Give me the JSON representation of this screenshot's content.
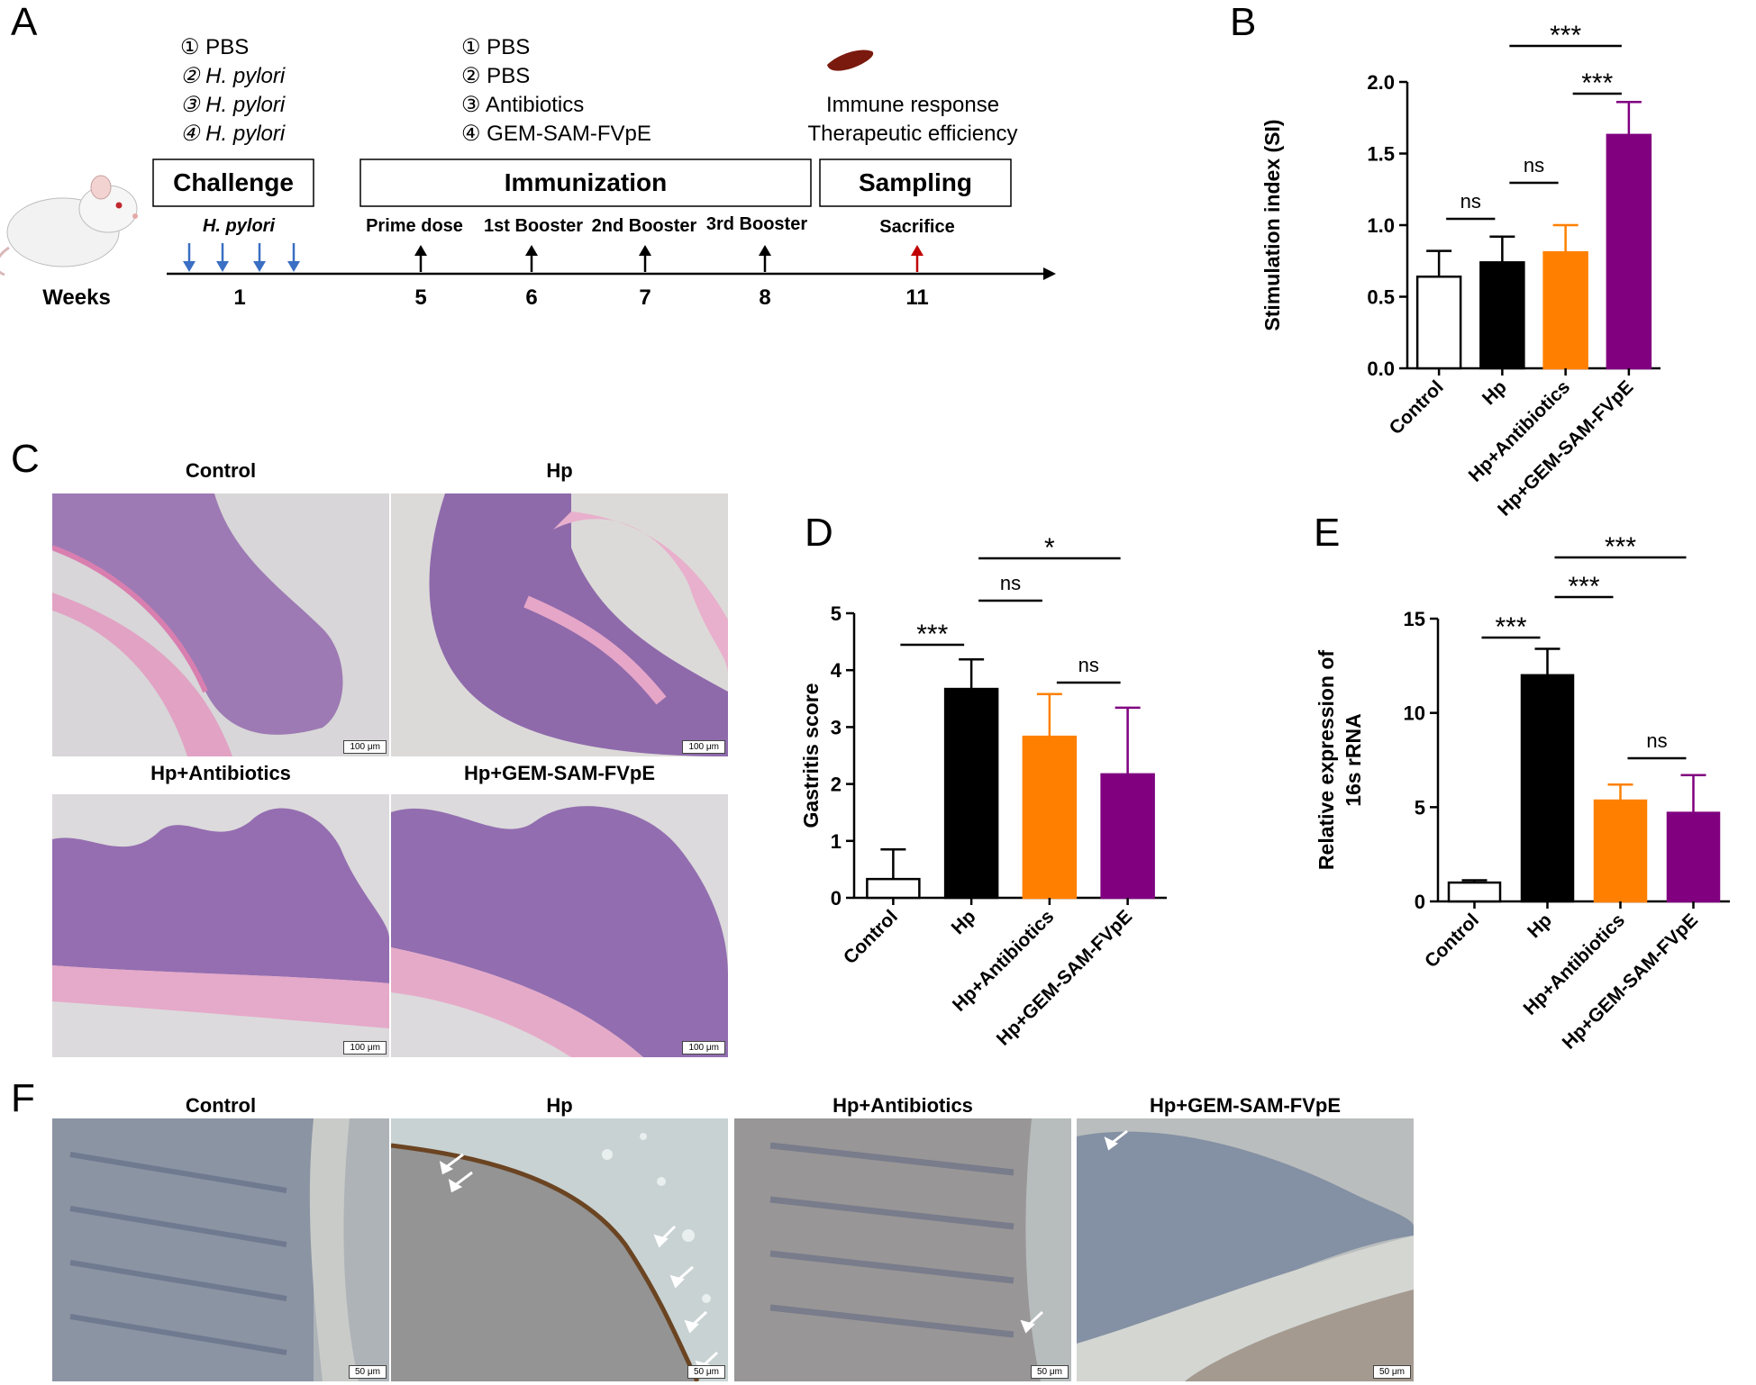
{
  "panels": {
    "A": "A",
    "B": "B",
    "C": "C",
    "D": "D",
    "E": "E",
    "F": "F"
  },
  "timeline": {
    "groups_challenge": [
      "① PBS",
      "② H. pylori",
      "③ H. pylori",
      "④ H. pylori"
    ],
    "groups_immunization": [
      "① PBS",
      "② PBS",
      "③ Antibiotics",
      "④ GEM-SAM-FVpE"
    ],
    "outcomes": [
      "Immune response",
      "Therapeutic efficiency"
    ],
    "boxes": [
      "Challenge",
      "Immunization",
      "Sampling"
    ],
    "events": {
      "hp": "H. pylori",
      "prime": "Prime dose",
      "b1": "1st Booster",
      "b2": "2nd Booster",
      "b3": "3rd Booster",
      "sacrifice": "Sacrifice"
    },
    "weeks_label": "Weeks",
    "weeks": [
      "1",
      "5",
      "6",
      "7",
      "8",
      "11"
    ],
    "arrow_colors": {
      "challenge": "#3a6fc4",
      "event": "#000000",
      "sacrifice": "#c00000"
    }
  },
  "micrographs_C": {
    "titles": [
      "Control",
      "Hp",
      "Hp+Antibiotics",
      "Hp+GEM-SAM-FVpE"
    ],
    "scale": "100 μm"
  },
  "micrographs_F": {
    "titles": [
      "Control",
      "Hp",
      "Hp+Antibiotics",
      "Hp+GEM-SAM-FVpE"
    ],
    "scale": "50 μm"
  },
  "colors": {
    "control": "#ffffff",
    "hp": "#000000",
    "antibiotics": "#ff8000",
    "gem": "#800080"
  },
  "chart_data": [
    {
      "panel": "B",
      "type": "bar",
      "ylabel": "Stimulation index (SI)",
      "categories": [
        "Control",
        "Hp",
        "Hp+Antibiotics",
        "Hp+GEM-SAM-FVpE"
      ],
      "values": [
        0.64,
        0.74,
        0.81,
        1.63
      ],
      "errors": [
        0.18,
        0.18,
        0.19,
        0.23
      ],
      "ylim": [
        0,
        2.0
      ],
      "yticks": [
        "0.0",
        "0.5",
        "1.0",
        "1.5",
        "2.0"
      ],
      "significance": [
        {
          "from": 0,
          "to": 1,
          "label": "ns"
        },
        {
          "from": 1,
          "to": 2,
          "label": "ns"
        },
        {
          "from": 2,
          "to": 3,
          "label": "***"
        },
        {
          "from": 1,
          "to": 3,
          "label": "***"
        }
      ]
    },
    {
      "panel": "D",
      "type": "bar",
      "ylabel": "Gastritis score",
      "categories": [
        "Control",
        "Hp",
        "Hp+Antibiotics",
        "Hp+GEM-SAM-FVpE"
      ],
      "values": [
        0.33,
        3.67,
        2.83,
        2.17
      ],
      "errors": [
        0.52,
        0.52,
        0.75,
        1.17
      ],
      "ylim": [
        0,
        5
      ],
      "yticks": [
        "0",
        "1",
        "2",
        "3",
        "4",
        "5"
      ],
      "significance": [
        {
          "from": 0,
          "to": 1,
          "label": "***"
        },
        {
          "from": 1,
          "to": 2,
          "label": "ns"
        },
        {
          "from": 2,
          "to": 3,
          "label": "ns"
        },
        {
          "from": 1,
          "to": 3,
          "label": "*"
        }
      ]
    },
    {
      "panel": "E",
      "type": "bar",
      "ylabel": "Relative expression of 16s rRNA",
      "categories": [
        "Control",
        "Hp",
        "Hp+Antibiotics",
        "Hp+GEM-SAM-FVpE"
      ],
      "values": [
        1.0,
        12.0,
        5.35,
        4.7
      ],
      "errors": [
        0.12,
        1.4,
        0.85,
        2.0
      ],
      "ylim": [
        0,
        15
      ],
      "yticks": [
        "0",
        "5",
        "10",
        "15"
      ],
      "significance": [
        {
          "from": 0,
          "to": 1,
          "label": "***"
        },
        {
          "from": 1,
          "to": 2,
          "label": "***"
        },
        {
          "from": 2,
          "to": 3,
          "label": "ns"
        },
        {
          "from": 1,
          "to": 3,
          "label": "***"
        }
      ]
    }
  ]
}
